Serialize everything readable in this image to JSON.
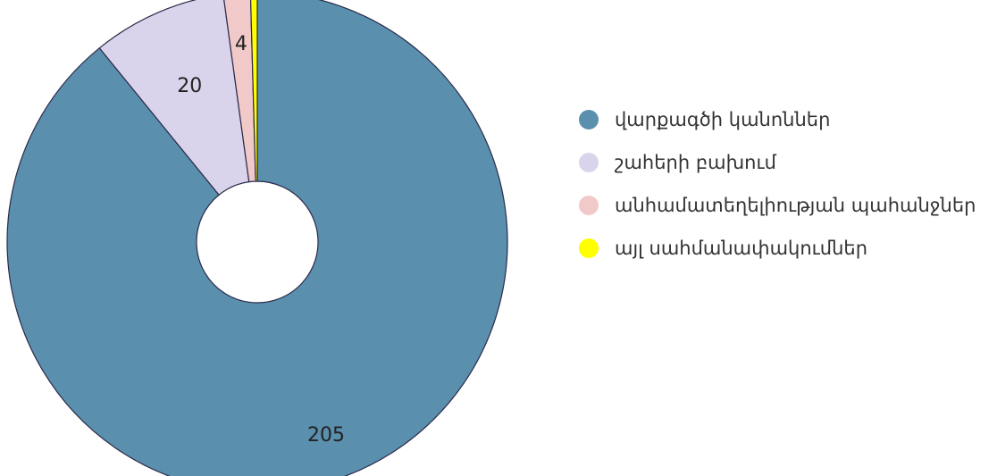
{
  "chart_data": {
    "type": "pie",
    "variant": "donut",
    "categories": [
      "վարքագծի կանոններ",
      "շահերի բախում",
      "անհամատեղելիության պահանջներ",
      "այլ սահմանափակումներ"
    ],
    "values": [
      205,
      20,
      4,
      1
    ],
    "data_labels": [
      "205",
      "20",
      "4",
      ""
    ],
    "colors": [
      "#5b8fae",
      "#d9d4ec",
      "#f2c9c9",
      "#ffff00"
    ],
    "legend_position": "right",
    "start_angle": "12 o'clock",
    "direction": "clockwise"
  }
}
